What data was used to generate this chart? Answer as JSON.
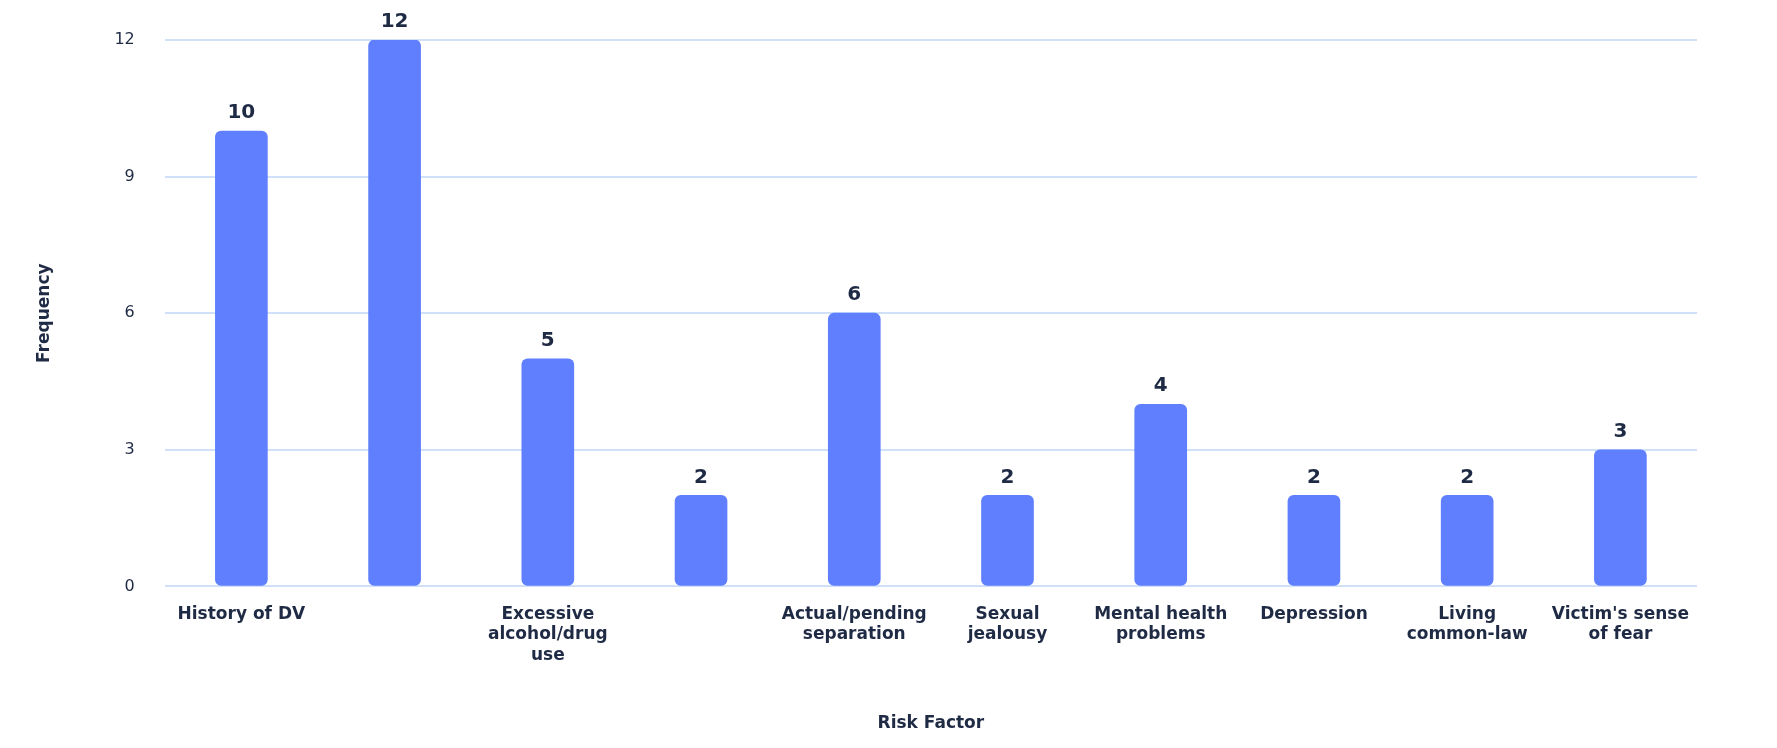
{
  "chart_data": {
    "type": "bar",
    "xlabel": "Risk Factor",
    "ylabel": "Frequency",
    "categories": [
      "History of DV",
      null,
      "Excessive alcohol/drug use",
      null,
      "Actual/pending separation",
      "Sexual jealousy",
      "Mental health problems",
      "Depression",
      "Living common-law",
      "Victim's sense of fear"
    ],
    "values": [
      10,
      12,
      5,
      2,
      6,
      2,
      4,
      2,
      2,
      3
    ],
    "color": "#5f7ffe",
    "ylim": [
      0,
      12
    ],
    "yticks": [
      0,
      3,
      6,
      9,
      12
    ],
    "grid": "y",
    "data_labels": true,
    "legend": false
  }
}
